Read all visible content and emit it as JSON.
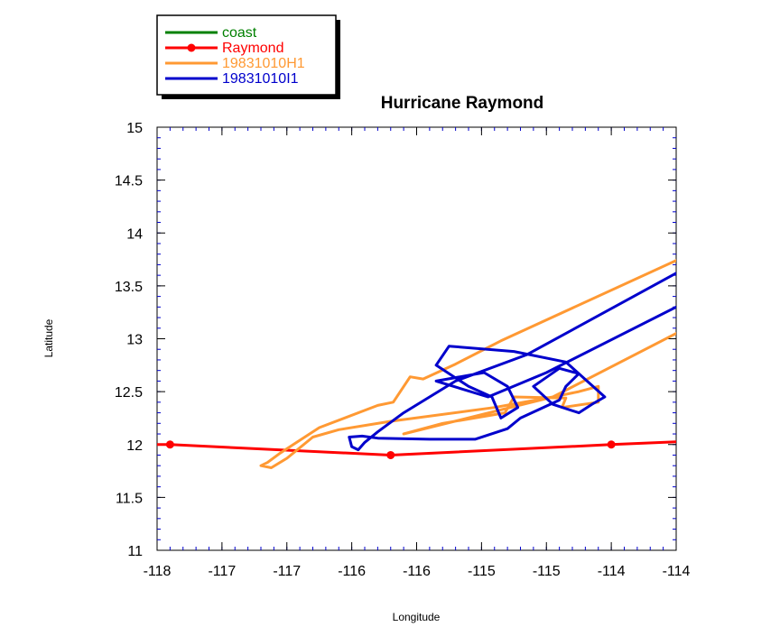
{
  "chart_data": {
    "type": "line",
    "title": "Hurricane Raymond",
    "xlabel": "Longitude",
    "ylabel": "Latitude",
    "xlim": [
      -118,
      -114
    ],
    "ylim": [
      11,
      15
    ],
    "x_ticks": [
      -118,
      -117.5,
      -117,
      -116.5,
      -116,
      -115.5,
      -115,
      -114.5,
      -114
    ],
    "x_tick_labels": [
      "-118",
      "-117",
      "-117",
      "-116",
      "-116",
      "-115",
      "-115",
      "-114",
      "-114"
    ],
    "y_ticks": [
      11,
      11.5,
      12,
      12.5,
      13,
      13.5,
      14,
      14.5,
      15
    ],
    "y_tick_labels": [
      "11",
      "11.5",
      "12",
      "12.5",
      "13",
      "13.5",
      "14",
      "14.5",
      "15"
    ],
    "legend_position": "top-left, outside plot",
    "grid": false,
    "series": [
      {
        "name": "coast",
        "color": "#008000",
        "marker": false,
        "points": []
      },
      {
        "name": "Raymond",
        "color": "#ff0000",
        "marker": true,
        "points": [
          [
            -118.1,
            12.0
          ],
          [
            -117.9,
            12.0
          ],
          [
            -116.2,
            11.9
          ],
          [
            -114.5,
            12.0
          ],
          [
            -113.9,
            12.03
          ]
        ],
        "marker_points": [
          [
            -117.9,
            12.0
          ],
          [
            -116.2,
            11.9
          ],
          [
            -114.5,
            12.0
          ]
        ]
      },
      {
        "name": "19831010H1",
        "color": "#ff9933",
        "marker": false,
        "points": [
          [
            -114.0,
            13.74
          ],
          [
            -115.35,
            12.98
          ],
          [
            -115.7,
            12.76
          ],
          [
            -115.95,
            12.62
          ],
          [
            -116.05,
            12.64
          ],
          [
            -116.18,
            12.4
          ],
          [
            -116.3,
            12.37
          ],
          [
            -116.75,
            12.16
          ],
          [
            -116.95,
            12.0
          ],
          [
            -117.05,
            11.92
          ],
          [
            -117.15,
            11.83
          ],
          [
            -117.2,
            11.8
          ],
          [
            -117.12,
            11.78
          ],
          [
            -117.0,
            11.87
          ],
          [
            -116.8,
            12.07
          ],
          [
            -116.6,
            12.14
          ],
          [
            -116.2,
            12.22
          ],
          [
            -115.4,
            12.35
          ],
          [
            -114.95,
            12.45
          ],
          [
            -114.75,
            12.5
          ],
          [
            -114.6,
            12.55
          ],
          [
            -114.6,
            12.4
          ],
          [
            -114.88,
            12.35
          ],
          [
            -114.85,
            12.44
          ],
          [
            -115.25,
            12.45
          ],
          [
            -115.32,
            12.3
          ],
          [
            -115.8,
            12.2
          ],
          [
            -116.1,
            12.1
          ],
          [
            -114.95,
            12.45
          ],
          [
            -114.0,
            13.05
          ]
        ]
      },
      {
        "name": "19831010I1",
        "color": "#0000cc",
        "marker": false,
        "points": [
          [
            -114.0,
            13.62
          ],
          [
            -115.15,
            12.85
          ],
          [
            -115.7,
            12.6
          ],
          [
            -116.1,
            12.3
          ],
          [
            -116.3,
            12.12
          ],
          [
            -116.4,
            12.02
          ],
          [
            -116.45,
            11.95
          ],
          [
            -116.5,
            11.98
          ],
          [
            -116.52,
            12.07
          ],
          [
            -116.42,
            12.08
          ],
          [
            -116.3,
            12.06
          ],
          [
            -115.9,
            12.05
          ],
          [
            -115.55,
            12.05
          ],
          [
            -115.3,
            12.15
          ],
          [
            -115.2,
            12.25
          ],
          [
            -114.9,
            12.42
          ],
          [
            -114.85,
            12.55
          ],
          [
            -114.75,
            12.67
          ],
          [
            -114.9,
            12.72
          ],
          [
            -115.1,
            12.55
          ],
          [
            -114.95,
            12.38
          ],
          [
            -114.75,
            12.3
          ],
          [
            -114.65,
            12.38
          ],
          [
            -114.55,
            12.45
          ],
          [
            -114.85,
            12.78
          ],
          [
            -115.25,
            12.88
          ],
          [
            -115.75,
            12.93
          ],
          [
            -115.85,
            12.75
          ],
          [
            -115.6,
            12.55
          ],
          [
            -115.42,
            12.45
          ],
          [
            -115.35,
            12.25
          ],
          [
            -115.22,
            12.35
          ],
          [
            -115.3,
            12.55
          ],
          [
            -115.48,
            12.68
          ],
          [
            -115.85,
            12.6
          ],
          [
            -115.45,
            12.45
          ],
          [
            -115.0,
            12.68
          ],
          [
            -114.0,
            13.3
          ]
        ]
      }
    ]
  }
}
